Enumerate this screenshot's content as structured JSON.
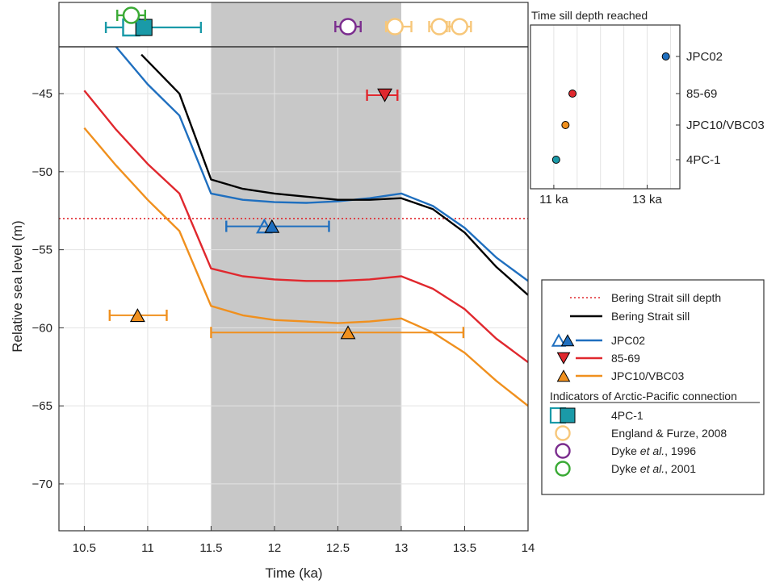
{
  "chart_data": [
    {
      "type": "line",
      "xlabel": "Time (ka)",
      "ylabel": "Relative sea level (m)",
      "xlim": [
        10.3,
        14.0
      ],
      "ylim": [
        -73,
        -42
      ],
      "x_ticks": [
        10.5,
        11,
        11.5,
        12,
        12.5,
        13,
        13.5,
        14
      ],
      "x_tick_labels": [
        "10.5",
        "11",
        "11.5",
        "12",
        "12.5",
        "13",
        "13.5",
        "14"
      ],
      "y_ticks": [
        -45,
        -50,
        -55,
        -60,
        -65,
        -70
      ],
      "y_tick_labels": [
        "−45",
        "−50",
        "−55",
        "−60",
        "−65",
        "−70"
      ],
      "grid": true,
      "shaded_interval": [
        11.5,
        13.0
      ],
      "sill_depth": -53.0,
      "series": [
        {
          "name": "JPC02",
          "color": "#1f6fbf",
          "x": [
            10.75,
            11.0,
            11.25,
            11.5,
            11.75,
            12.0,
            12.25,
            12.5,
            12.75,
            13.0,
            13.25,
            13.5,
            13.75,
            14.0
          ],
          "y": [
            -42.0,
            -44.4,
            -46.4,
            -51.4,
            -51.8,
            -51.95,
            -52.0,
            -51.9,
            -51.7,
            -51.4,
            -52.2,
            -53.6,
            -55.5,
            -57.0
          ]
        },
        {
          "name": "85-69",
          "color": "#e0282e",
          "x": [
            10.5,
            10.75,
            11.0,
            11.25,
            11.5,
            11.75,
            12.0,
            12.25,
            12.5,
            12.75,
            13.0,
            13.25,
            13.5,
            13.75,
            14.0
          ],
          "y": [
            -44.8,
            -47.3,
            -49.5,
            -51.4,
            -56.2,
            -56.7,
            -56.9,
            -57.0,
            -57.0,
            -56.9,
            -56.7,
            -57.5,
            -58.8,
            -60.7,
            -62.2
          ]
        },
        {
          "name": "JPC10/VBC03",
          "color": "#f0901e",
          "x": [
            10.5,
            10.75,
            11.0,
            11.25,
            11.5,
            11.75,
            12.0,
            12.25,
            12.5,
            12.75,
            13.0,
            13.25,
            13.5,
            13.75,
            14.0
          ],
          "y": [
            -47.2,
            -49.6,
            -51.8,
            -53.8,
            -58.6,
            -59.2,
            -59.5,
            -59.6,
            -59.7,
            -59.6,
            -59.4,
            -60.3,
            -61.6,
            -63.4,
            -65.0
          ]
        },
        {
          "name": "Bering Strait sill",
          "color": "#000000",
          "x": [
            10.95,
            11.25,
            11.5,
            11.75,
            12.0,
            12.25,
            12.5,
            12.75,
            13.0,
            13.25,
            13.5,
            13.75,
            14.0
          ],
          "y": [
            -42.5,
            -45.0,
            -50.5,
            -51.1,
            -51.4,
            -51.6,
            -51.8,
            -51.8,
            -51.7,
            -52.4,
            -53.9,
            -56.1,
            -57.9
          ]
        }
      ],
      "markers": [
        {
          "series": "JPC02",
          "style": "open-triangle-up",
          "x": 11.92,
          "y": -53.5,
          "color": "#1f6fbf"
        },
        {
          "series": "JPC02",
          "style": "triangle-up",
          "x": 11.98,
          "y": -53.5,
          "xerr": [
            11.62,
            12.43
          ],
          "color": "#1f6fbf"
        },
        {
          "series": "85-69",
          "style": "triangle-down",
          "x": 12.87,
          "y": -45.1,
          "xerr": [
            12.73,
            12.97
          ],
          "color": "#e0282e"
        },
        {
          "series": "JPC10/VBC03",
          "style": "triangle-up",
          "x": 10.92,
          "y": -59.2,
          "xerr": [
            10.7,
            11.15
          ],
          "color": "#f0901e"
        },
        {
          "series": "JPC10/VBC03",
          "style": "triangle-up",
          "x": 12.58,
          "y": -60.3,
          "xerr": [
            11.5,
            13.49
          ],
          "color": "#f0901e"
        }
      ],
      "connection_indicators": [
        {
          "name": "4PC-1",
          "style": "open-square",
          "x": 10.87,
          "xerr": [
            10.67,
            11.42
          ],
          "color": "#1a9aa8"
        },
        {
          "name": "4PC-1",
          "style": "square",
          "x": 10.97,
          "color": "#1a9aa8"
        },
        {
          "name": "England & Furze, 2008",
          "style": "open-circle",
          "x": 12.95,
          "xerr": [
            12.88,
            13.08
          ],
          "color": "#f7c77a"
        },
        {
          "name": "England & Furze, 2008",
          "style": "open-circle",
          "x": 13.3,
          "xerr": [
            13.22,
            13.38
          ],
          "color": "#f7c77a"
        },
        {
          "name": "England & Furze, 2008",
          "style": "open-circle",
          "x": 13.46,
          "xerr": [
            13.36,
            13.55
          ],
          "color": "#f7c77a"
        },
        {
          "name": "Dyke et al., 1996",
          "style": "open-circle",
          "x": 12.58,
          "xerr": [
            12.48,
            12.68
          ],
          "color": "#7b2d8e"
        },
        {
          "name": "Dyke et al., 2001",
          "style": "open-circle",
          "x": 10.87,
          "xerr": [
            10.76,
            10.98
          ],
          "color": "#3aaa35"
        }
      ]
    },
    {
      "type": "scatter",
      "title": "Time sill depth reached",
      "xlim": [
        10.5,
        13.7
      ],
      "x_ticks": [
        11,
        13
      ],
      "x_tick_labels": [
        "11 ka",
        "13 ka"
      ],
      "categories": [
        "JPC02",
        "85-69",
        "JPC10/VBC03",
        "4PC-1"
      ],
      "values": [
        13.4,
        11.4,
        11.25,
        11.05
      ],
      "colors": [
        "#1f6fbf",
        "#e0282e",
        "#f0901e",
        "#1a9aa8"
      ],
      "grid": true
    }
  ],
  "legend": {
    "items": [
      {
        "label": "Bering Strait sill depth",
        "style": "dotted-line",
        "color": "#e0282e"
      },
      {
        "label": "Bering Strait sill",
        "style": "line",
        "color": "#000000"
      },
      {
        "label": "JPC02",
        "style": "triangles-line",
        "color": "#1f6fbf"
      },
      {
        "label": "85-69",
        "style": "triangle-down-line",
        "color": "#e0282e"
      },
      {
        "label": "JPC10/VBC03",
        "style": "triangle-line",
        "color": "#f0901e"
      }
    ],
    "section_header": "Indicators of Arctic-Pacific connection",
    "indicator_items": [
      {
        "label": "4PC-1",
        "style": "squares",
        "color": "#1a9aa8"
      },
      {
        "label": "England & Furze, 2008",
        "style": "circle",
        "color": "#f7c77a"
      },
      {
        "label": "Dyke et al., 1996",
        "label_pre": "Dyke ",
        "label_em": "et al.",
        "label_post": ", 1996",
        "style": "circle",
        "color": "#7b2d8e"
      },
      {
        "label": "Dyke et al., 2001",
        "label_pre": "Dyke ",
        "label_em": "et al.",
        "label_post": ", 2001",
        "style": "circle",
        "color": "#3aaa35"
      }
    ]
  }
}
